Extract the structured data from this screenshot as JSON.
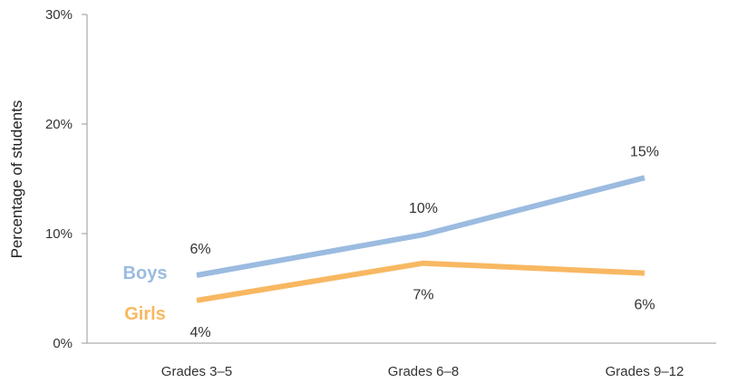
{
  "chart_data": {
    "type": "line",
    "categories": [
      "Grades 3–5",
      "Grades 6–8",
      "Grades 9–12"
    ],
    "series": [
      {
        "name": "Boys",
        "values": [
          6.2,
          9.9,
          15.1
        ],
        "labels": [
          "6%",
          "10%",
          "15%"
        ],
        "color": "#9bbbe0"
      },
      {
        "name": "Girls",
        "values": [
          3.9,
          7.3,
          6.4
        ],
        "labels": [
          "4%",
          "7%",
          "6%"
        ],
        "color": "#f8b862"
      }
    ],
    "ylabel": "Percentage of students",
    "ylim": [
      0,
      30
    ],
    "yticks": [
      "0%",
      "10%",
      "20%",
      "30%"
    ],
    "grid": false
  }
}
